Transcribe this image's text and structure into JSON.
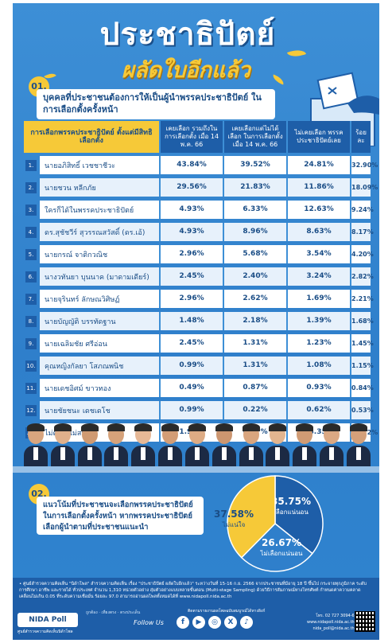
{
  "header": {
    "title": "ประชาธิปัตย์",
    "subtitle": "ผลัดใบอีกแล้ว"
  },
  "q1": {
    "number": "01.",
    "question": "บุคคลที่ประชาชนต้องการให้เป็นผู้นำพรรคประชาธิปัตย์ ในการเลือกตั้งครั้งหน้า"
  },
  "table": {
    "columns": [
      "การเลือกพรรคประชาธิปัตย์ ตั้งแต่มีสิทธิเลือกตั้ง",
      "เคยเลือก รวมถึงในการเลือกตั้ง เมื่อ 14 พ.ค. 66",
      "เคยเลือกแต่ไม่ได้เลือก ในการเลือกตั้ง เมื่อ 14 พ.ค. 66",
      "ไม่เคยเลือก พรรคประชาธิปัตย์เลย",
      "ร้อยละ"
    ],
    "rows": [
      {
        "idx": "1.",
        "name": "นายอภิสิทธิ์ เวชชาชีวะ",
        "v1": "43.84%",
        "v2": "39.52%",
        "v3": "24.81%",
        "total": "32.90%"
      },
      {
        "idx": "2.",
        "name": "นายชวน หลีกภัย",
        "v1": "29.56%",
        "v2": "21.83%",
        "v3": "11.86%",
        "total": "18.09%"
      },
      {
        "idx": "3.",
        "name": "ใครก็ได้ในพรรคประชาธิปัตย์",
        "v1": "4.93%",
        "v2": "6.33%",
        "v3": "12.63%",
        "total": "9.24%"
      },
      {
        "idx": "4.",
        "name": "ดร.สุชัชวีร์ สุวรรณสวัสดิ์ (ดร.เอ้)",
        "v1": "4.93%",
        "v2": "8.96%",
        "v3": "8.63%",
        "total": "8.17%"
      },
      {
        "idx": "5.",
        "name": "นายกรณ์ จาติกวณิช",
        "v1": "2.96%",
        "v2": "5.68%",
        "v3": "3.54%",
        "total": "4.20%"
      },
      {
        "idx": "6.",
        "name": "นางวทันยา บุนนาค (มาดามเดียร์)",
        "v1": "2.45%",
        "v2": "2.40%",
        "v3": "3.24%",
        "total": "2.82%"
      },
      {
        "idx": "7.",
        "name": "นายจุรินทร์ ลักษณวิศิษฏ์",
        "v1": "2.96%",
        "v2": "2.62%",
        "v3": "1.69%",
        "total": "2.21%"
      },
      {
        "idx": "8.",
        "name": "นายบัญญัติ บรรทัดฐาน",
        "v1": "1.48%",
        "v2": "2.18%",
        "v3": "1.39%",
        "total": "1.68%"
      },
      {
        "idx": "9.",
        "name": "นายเฉลิมชัย ศรีอ่อน",
        "v1": "2.45%",
        "v2": "1.31%",
        "v3": "1.23%",
        "total": "1.45%"
      },
      {
        "idx": "10.",
        "name": "คุณหญิงกัลยา โสภณพนิช",
        "v1": "0.99%",
        "v2": "1.31%",
        "v3": "1.08%",
        "total": "1.15%"
      },
      {
        "idx": "11.",
        "name": "นายเดชอิศม์ ขาวทอง",
        "v1": "0.49%",
        "v2": "0.87%",
        "v3": "0.93%",
        "total": "0.84%"
      },
      {
        "idx": "12.",
        "name": "นายชัยชนะ เดชเดโช",
        "v1": "0.99%",
        "v2": "0.22%",
        "v3": "0.62%",
        "total": "0.53%"
      },
      {
        "idx": "13.",
        "name": "ไม่ตอบ/ไม่สนใจ",
        "v1": "1.97%",
        "v2": "6.77%",
        "v3": "28.35%",
        "total": "16.72%"
      }
    ]
  },
  "q2": {
    "number": "02.",
    "question": "แนวโน้มที่ประชาชนจะเลือกพรรคประชาธิปัตย์ ในการเลือกตั้งครั้งหน้า หากพรรคประชาธิปัตย์ เลือกผู้นำตามที่ประชาชนแนะนำ"
  },
  "chart_data": {
    "type": "pie",
    "slices": [
      {
        "value": 35.75,
        "label": "35.75%",
        "name": "เลือกแน่นอน",
        "color": "#1e5ea8"
      },
      {
        "value": 26.67,
        "label": "26.67%",
        "name": "ไม่เลือกแน่นอน",
        "color": "#2f7fcb"
      },
      {
        "value": 37.58,
        "label": "37.58%",
        "name": "ไม่แน่ใจ",
        "color": "#f6c938"
      }
    ]
  },
  "footer": {
    "note": "• ศูนย์สำรวจความคิดเห็น \"นิด้าโพล\" สำรวจความคิดเห็น เรื่อง \"ประชาธิปัตย์ ผลัดใบอีกแล้ว\" ระหว่างวันที่ 15-16 ก.ย. 2566 จากประชาชนที่มีอายุ 18 ปี ขึ้นไป กระจายทุกภูมิภาค ระดับการศึกษา อาชีพ และรายได้ ทั่วประเทศ จำนวน 1,310 หน่วยตัวอย่าง สุ่มตัวอย่างแบบหลายขั้นตอน (Multi-stage Sampling) ด้วยวิธีการสัมภาษณ์ทางโทรศัพท์ กำหนดค่าความคลาดเคลื่อนไม่เกิน 0.05 ที่ระดับความเชื่อมั่น ร้อยละ 97.0 สามารถอ่านผลโพลทั้งหมดได้ที่ www.nidapoll.nida.ac.th",
    "brand": "NIDA Poll",
    "brand_sub": "ศูนย์สำรวจความคิดเห็นนิด้าโพล",
    "small_lines": "ถูกต้อง · เที่ยงตรง · ตรงประเด็น",
    "follow": "Follow Us",
    "site_line": "ติดตามรายงานผลโพลฉบับสมบูรณ์ได้ทางลิงก์",
    "phone": "โทร. 02 727 3094-6",
    "site": "www.nidapoll.nida.ac.th",
    "email": "nida_poll@nida.ac.th",
    "social": [
      "f",
      "▶",
      "◎",
      "X",
      "♪"
    ]
  }
}
